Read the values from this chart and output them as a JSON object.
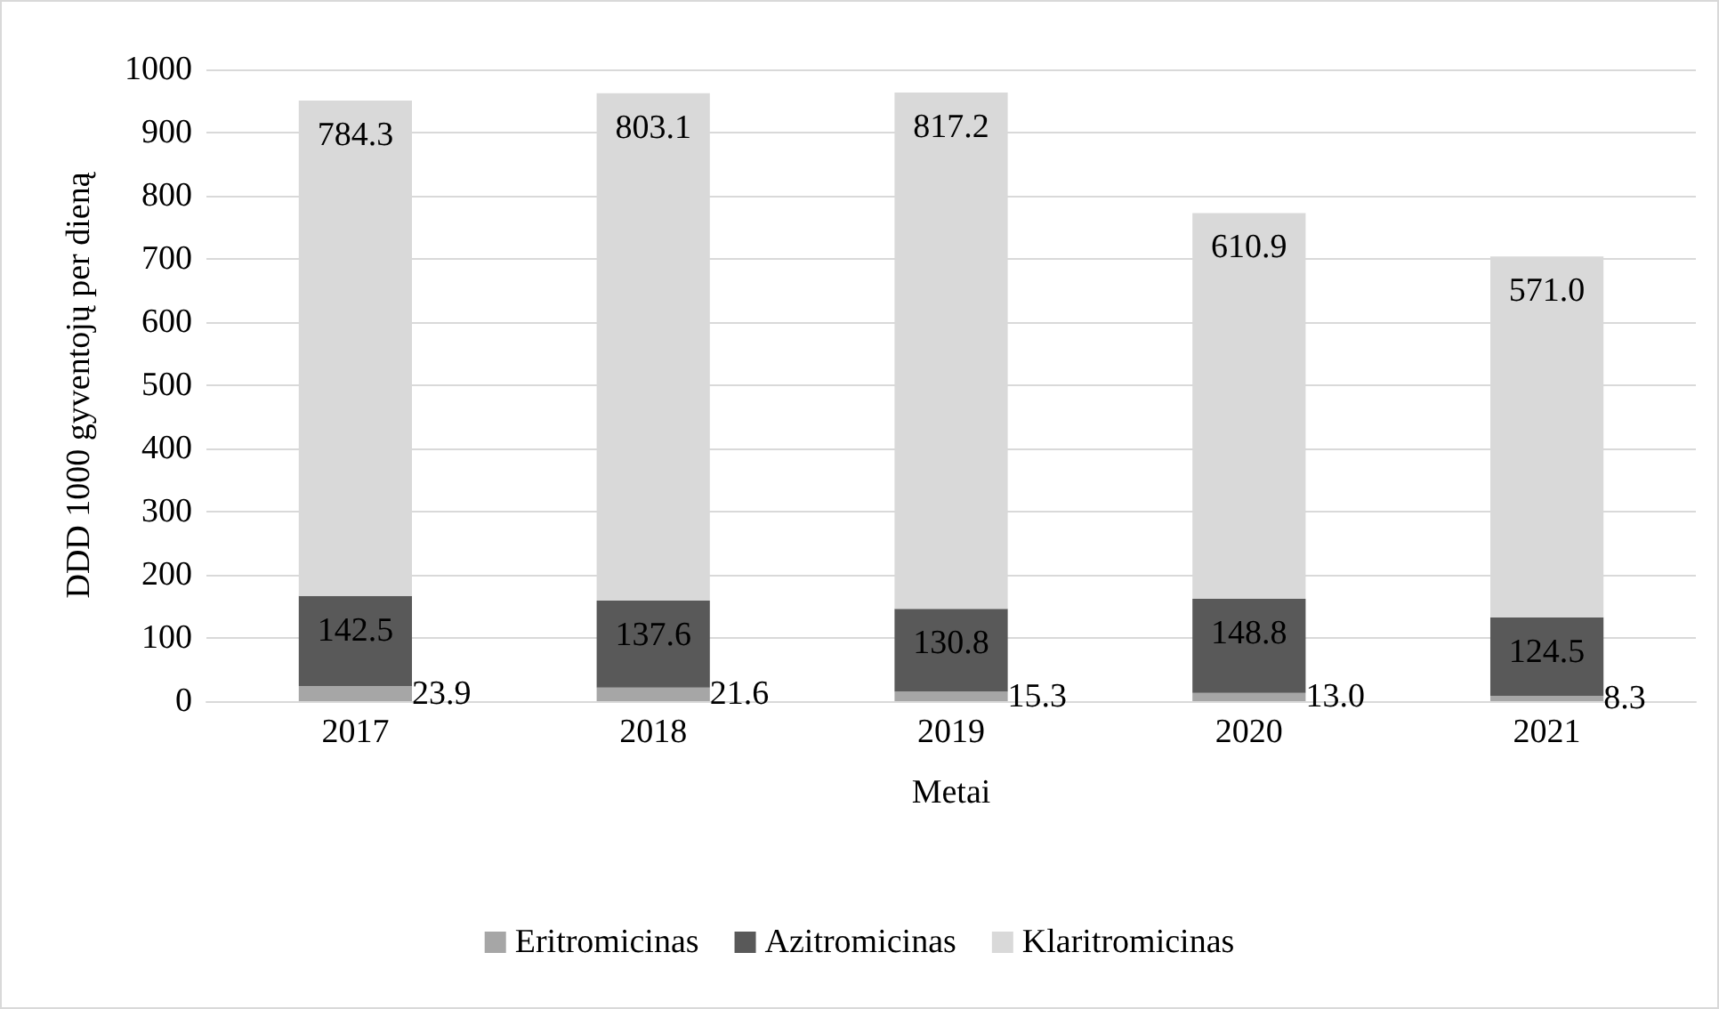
{
  "chart_data": {
    "type": "bar",
    "stacked": true,
    "xlabel": "Metai",
    "ylabel": "DDD 1000 gyventojų per dieną",
    "categories": [
      "2017",
      "2018",
      "2019",
      "2020",
      "2021"
    ],
    "series": [
      {
        "name": "Eritromicinas",
        "color": "#a6a6a6",
        "values": [
          23.9,
          21.6,
          15.3,
          13.0,
          8.3
        ],
        "value_labels": [
          "23.9",
          "21.6",
          "15.3",
          "13.0",
          "8.3"
        ]
      },
      {
        "name": "Azitromicinas",
        "color": "#595959",
        "values": [
          142.5,
          137.6,
          130.8,
          148.8,
          124.5
        ],
        "value_labels": [
          "142.5",
          "137.6",
          "130.8",
          "148.8",
          "124.5"
        ]
      },
      {
        "name": "Klaritromicinas",
        "color": "#d9d9d9",
        "values": [
          784.3,
          803.1,
          817.2,
          610.9,
          571.0
        ],
        "value_labels": [
          "784.3",
          "803.1",
          "817.2",
          "610.9",
          "571.0"
        ]
      }
    ],
    "ylim": [
      0,
      1000
    ],
    "yticks": [
      0,
      100,
      200,
      300,
      400,
      500,
      600,
      700,
      800,
      900,
      1000
    ],
    "grid": "y",
    "legend": "bottom"
  }
}
